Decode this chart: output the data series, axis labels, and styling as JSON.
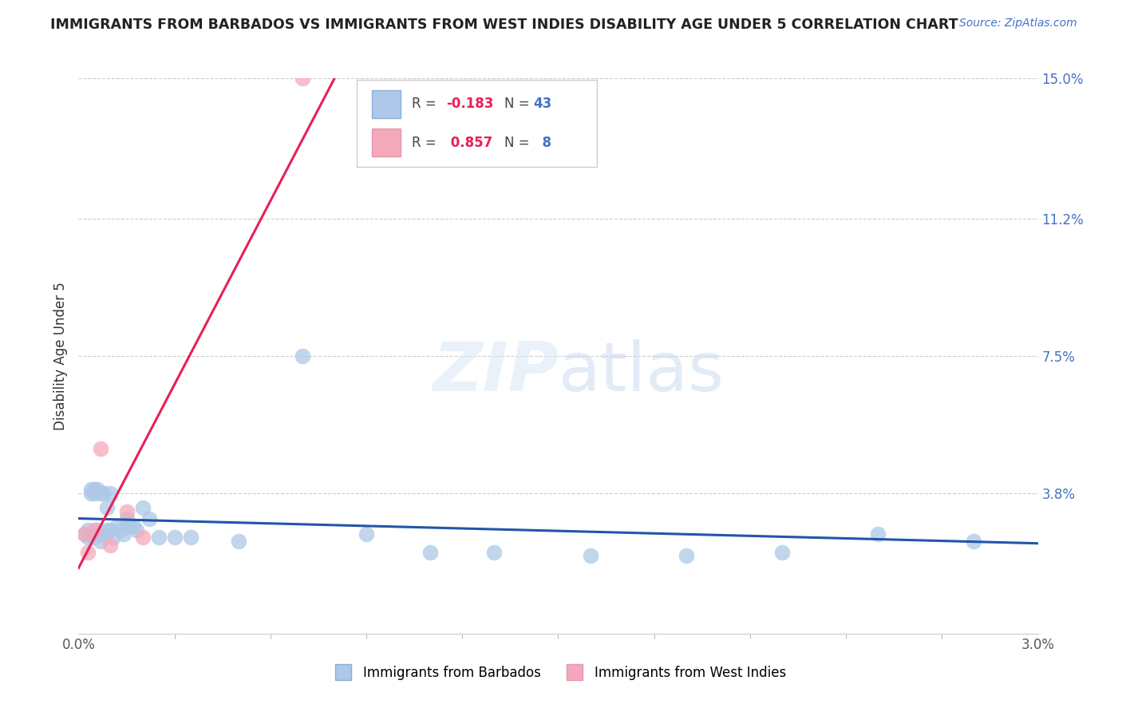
{
  "title": "IMMIGRANTS FROM BARBADOS VS IMMIGRANTS FROM WEST INDIES DISABILITY AGE UNDER 5 CORRELATION CHART",
  "source": "Source: ZipAtlas.com",
  "ylabel": "Disability Age Under 5",
  "xlim": [
    0.0,
    0.03
  ],
  "ylim": [
    0.0,
    0.15
  ],
  "yticks": [
    0.038,
    0.075,
    0.112,
    0.15
  ],
  "ytick_labels": [
    "3.8%",
    "7.5%",
    "11.2%",
    "15.0%"
  ],
  "xtick_positions": [
    0.0,
    0.03
  ],
  "xtick_labels": [
    "0.0%",
    "3.0%"
  ],
  "barbados_R": -0.183,
  "barbados_N": 43,
  "westindies_R": 0.857,
  "westindies_N": 8,
  "barbados_color": "#adc8e8",
  "westindies_color": "#f5a8ba",
  "barbados_line_color": "#2255aa",
  "westindies_line_color": "#e82055",
  "watermark_text": "ZIPatlas",
  "title_color": "#222222",
  "axis_label_color": "#333333",
  "right_axis_color": "#4472c4",
  "grid_color": "#cccccc",
  "background_color": "#ffffff",
  "barbados_x": [
    0.0002,
    0.0003,
    0.0003,
    0.0004,
    0.0004,
    0.0004,
    0.0005,
    0.0005,
    0.0005,
    0.0006,
    0.0006,
    0.0007,
    0.0007,
    0.0007,
    0.0008,
    0.0008,
    0.0009,
    0.0009,
    0.001,
    0.001,
    0.0011,
    0.0012,
    0.0013,
    0.0014,
    0.0015,
    0.0016,
    0.0017,
    0.0018,
    0.002,
    0.0022,
    0.0025,
    0.003,
    0.0035,
    0.005,
    0.007,
    0.009,
    0.011,
    0.013,
    0.016,
    0.019,
    0.022,
    0.025,
    0.028
  ],
  "barbados_y": [
    0.027,
    0.028,
    0.026,
    0.039,
    0.038,
    0.027,
    0.039,
    0.038,
    0.026,
    0.039,
    0.028,
    0.038,
    0.027,
    0.025,
    0.038,
    0.027,
    0.034,
    0.028,
    0.038,
    0.028,
    0.026,
    0.029,
    0.028,
    0.027,
    0.031,
    0.029,
    0.029,
    0.028,
    0.034,
    0.031,
    0.026,
    0.026,
    0.026,
    0.025,
    0.075,
    0.027,
    0.022,
    0.022,
    0.021,
    0.021,
    0.022,
    0.027,
    0.025
  ],
  "westindies_x": [
    0.0002,
    0.0003,
    0.0005,
    0.0007,
    0.001,
    0.0015,
    0.002,
    0.007
  ],
  "westindies_y": [
    0.027,
    0.022,
    0.028,
    0.05,
    0.024,
    0.033,
    0.026,
    0.15
  ],
  "legend_barbados_label": "Immigrants from Barbados",
  "legend_westindies_label": "Immigrants from West Indies"
}
